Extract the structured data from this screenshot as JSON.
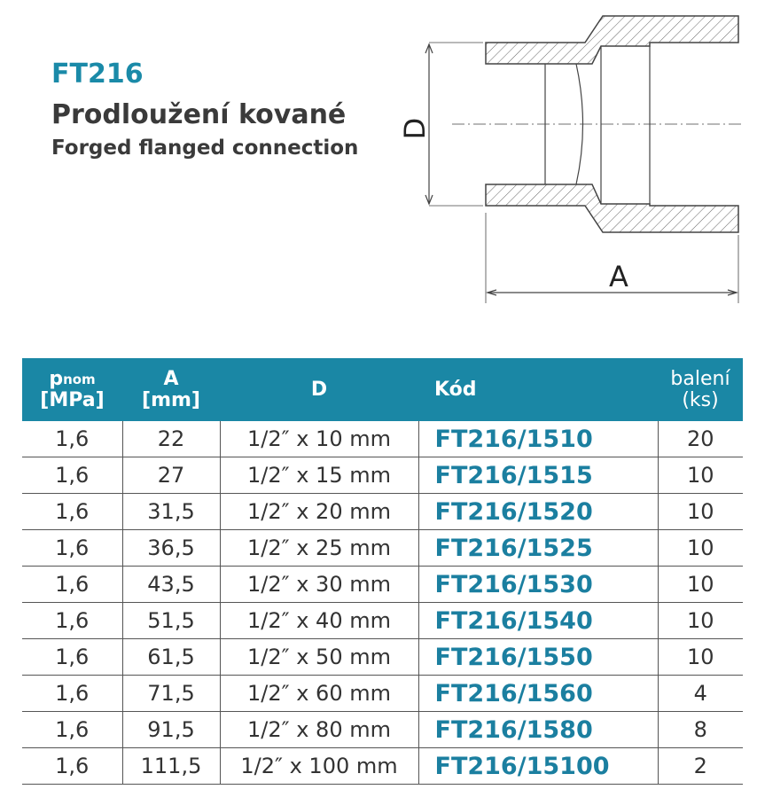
{
  "header": {
    "code": "FT216",
    "title_cs": "Prodloužení kované",
    "title_en": "Forged flanged connection"
  },
  "drawing": {
    "label_d": "D",
    "label_a": "A"
  },
  "table": {
    "headers": [
      {
        "main": "p",
        "sub": "nom",
        "unit": "[MPa]"
      },
      {
        "main": "A",
        "unit": "[mm]"
      },
      {
        "main": "D"
      },
      {
        "main": "Kód"
      },
      {
        "main": "balení",
        "unit": "(ks)"
      }
    ],
    "rows": [
      [
        "1,6",
        "22",
        "1/2″ x 10 mm",
        "FT216/1510",
        "20"
      ],
      [
        "1,6",
        "27",
        "1/2″ x 15 mm",
        "FT216/1515",
        "10"
      ],
      [
        "1,6",
        "31,5",
        "1/2″ x 20 mm",
        "FT216/1520",
        "10"
      ],
      [
        "1,6",
        "36,5",
        "1/2″ x 25 mm",
        "FT216/1525",
        "10"
      ],
      [
        "1,6",
        "43,5",
        "1/2″ x 30 mm",
        "FT216/1530",
        "10"
      ],
      [
        "1,6",
        "51,5",
        "1/2″ x 40 mm",
        "FT216/1540",
        "10"
      ],
      [
        "1,6",
        "61,5",
        "1/2″ x 50 mm",
        "FT216/1550",
        "10"
      ],
      [
        "1,6",
        "71,5",
        "1/2″ x 60 mm",
        "FT216/1560",
        "4"
      ],
      [
        "1,6",
        "91,5",
        "1/2″ x 80 mm",
        "FT216/1580",
        "8"
      ],
      [
        "1,6",
        "111,5",
        "1/2″ x 100 mm",
        "FT216/15100",
        "2"
      ]
    ]
  }
}
